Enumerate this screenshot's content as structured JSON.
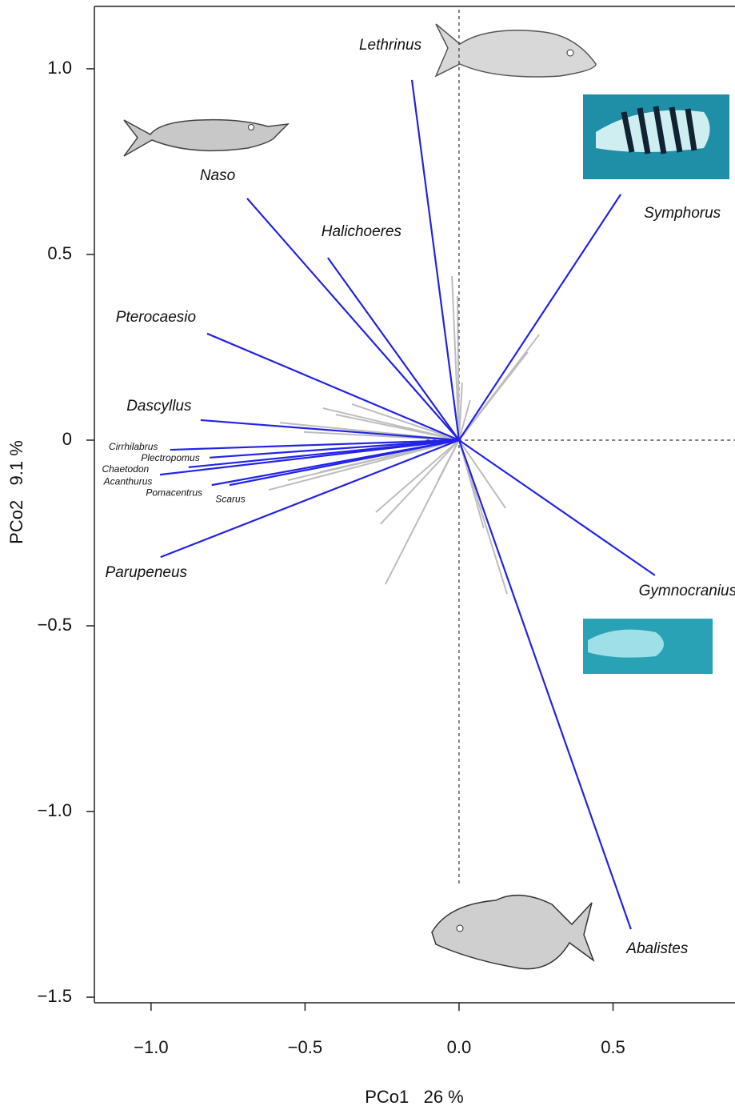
{
  "chart_data": {
    "type": "biplot",
    "xlabel": "PCo1   26 %",
    "ylabel": "PCo2   9.1 %",
    "xlim": [
      -1.184,
      0.896
    ],
    "ylim": [
      -1.515,
      1.168
    ],
    "xticks": [
      {
        "value": -1,
        "label": "−1.0"
      },
      {
        "value": -0.5,
        "label": "−0.5"
      },
      {
        "value": 0,
        "label": "0.0"
      },
      0.5
    ],
    "yticks": [
      {
        "value": -1.5,
        "label": "−1.5"
      },
      {
        "value": -1,
        "label": "−1.0"
      },
      {
        "value": -0.5,
        "label": "−0.5"
      },
      0,
      0.5,
      {
        "value": 1,
        "label": "1.0"
      }
    ],
    "vectors": {
      "color": "#2323e6",
      "labels": [
        "Lethrinus",
        "Naso",
        "Halichoeres",
        "Symphorus",
        "Pterocaesio",
        "Dascyllus",
        "Cirrhilabrus",
        "Plectropomus",
        "Chaetodon",
        "Acanthurus",
        "Pomacentrus",
        "Scarus",
        "Parupeneus",
        "Gymnocranius",
        "Abalistes"
      ],
      "x": [
        -0.153,
        -0.688,
        -0.426,
        0.525,
        -0.818,
        -0.839,
        -0.938,
        -0.81,
        -0.878,
        -0.971,
        -0.803,
        -0.745,
        -0.969,
        0.636,
        0.558
      ],
      "y": [
        0.97,
        0.651,
        0.491,
        0.662,
        0.287,
        0.054,
        -0.026,
        -0.047,
        -0.073,
        -0.093,
        -0.121,
        -0.121,
        -0.315,
        -0.364,
        -1.317
      ]
    },
    "minor_vectors": {
      "color": "#bdbdbd",
      "x": [
        -0.023,
        -0.005,
        0.26,
        0.223,
        0.036,
        0.01,
        -0.442,
        -0.4,
        -0.582,
        -0.348,
        -0.504,
        -0.618,
        -0.556,
        -0.452,
        -0.27,
        -0.255,
        -0.239,
        0.151,
        0.156,
        0.08,
        -0.068
      ],
      "y": [
        0.442,
        0.388,
        0.284,
        0.237,
        0.108,
        0.155,
        0.086,
        0.069,
        0.047,
        0.097,
        0.022,
        -0.134,
        -0.108,
        -0.086,
        -0.194,
        -0.226,
        -0.388,
        -0.183,
        -0.414,
        -0.237,
        -0.108
      ]
    }
  }
}
